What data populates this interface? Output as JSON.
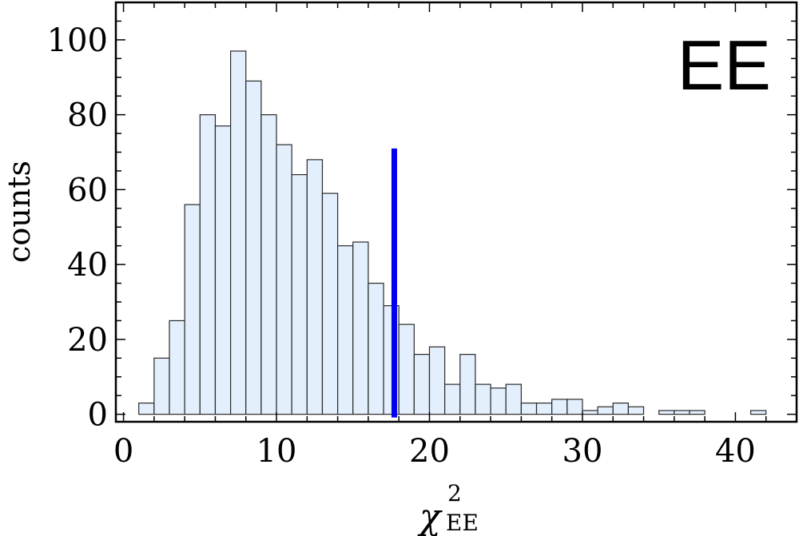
{
  "chart_data": {
    "type": "bar",
    "panel_label": "EE",
    "xlabel": "χ",
    "xlabel_superscript": "2",
    "xlabel_subscript": "EE",
    "ylabel": "counts",
    "xlim": [
      -0.5,
      44
    ],
    "ylim": [
      -2,
      110
    ],
    "x_ticks": [
      0,
      10,
      20,
      30,
      40
    ],
    "y_ticks": [
      0,
      20,
      40,
      60,
      80,
      100
    ],
    "bin_width": 1,
    "bin_start": 1,
    "values": [
      3,
      15,
      25,
      56,
      80,
      77,
      97,
      89,
      80,
      72,
      64,
      68,
      59,
      45,
      46,
      35,
      29,
      24,
      16,
      18,
      8,
      16,
      8,
      7,
      8,
      3,
      3,
      4,
      4,
      1,
      2,
      3,
      2,
      0,
      1,
      1,
      1,
      0,
      0,
      0,
      1
    ],
    "marker": {
      "x": 17.7,
      "y_from": 0,
      "y_to": 71,
      "color": "#0000ee"
    },
    "bar_fill": "#e3effc",
    "bar_stroke": "#2a2a2a"
  }
}
